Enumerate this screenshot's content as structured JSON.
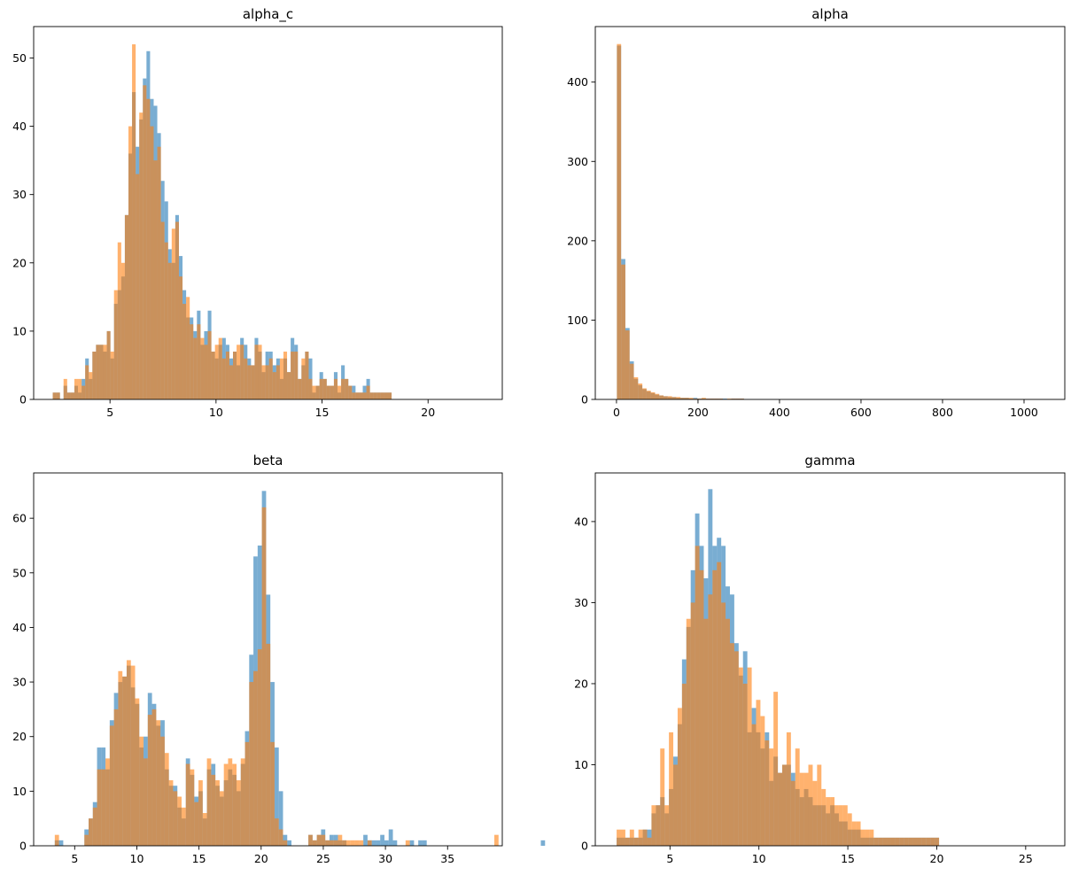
{
  "figure": {
    "background": "#ffffff"
  },
  "series_colors": [
    "#1f77b4",
    "#ff7f0e"
  ],
  "series_alpha": 0.6,
  "chart_data": [
    {
      "type": "bar",
      "title": "alpha_c",
      "xlabel": "",
      "ylabel": "",
      "xlim": [
        1.4,
        23.5
      ],
      "ylim": [
        0,
        54.6
      ],
      "xticks": [
        5,
        10,
        15,
        20
      ],
      "yticks": [
        0,
        10,
        20,
        30,
        40,
        50
      ],
      "bin_width": 0.17,
      "series": [
        {
          "x0": 2.3,
          "values": [
            1,
            1,
            0,
            2,
            1,
            1,
            2,
            1,
            3,
            6,
            3,
            7,
            8,
            8,
            7,
            10,
            6,
            14,
            16,
            18,
            27,
            36,
            45,
            37,
            41,
            47,
            51,
            44,
            43,
            39,
            32,
            29,
            22,
            20,
            27,
            21,
            16,
            12,
            12,
            10,
            13,
            8,
            10,
            13,
            7,
            6,
            8,
            9,
            8,
            6,
            7,
            5,
            9,
            8,
            6,
            5,
            9,
            7,
            4,
            7,
            7,
            5,
            6,
            3,
            6,
            4,
            9,
            8,
            3,
            5,
            7,
            6,
            1,
            2,
            4,
            3,
            2,
            2,
            4,
            1,
            5,
            3,
            2,
            2,
            1,
            1,
            2,
            3,
            1,
            1,
            1,
            1,
            1,
            1
          ]
        },
        {
          "x0": 2.3,
          "values": [
            1,
            1,
            0,
            3,
            1,
            1,
            3,
            3,
            2,
            5,
            4,
            7,
            8,
            8,
            8,
            10,
            7,
            16,
            23,
            20,
            27,
            40,
            52,
            33,
            42,
            46,
            44,
            40,
            35,
            37,
            26,
            23,
            20,
            25,
            26,
            18,
            14,
            15,
            11,
            9,
            11,
            9,
            8,
            10,
            7,
            8,
            9,
            6,
            7,
            5,
            7,
            8,
            8,
            6,
            5,
            5,
            8,
            8,
            5,
            5,
            6,
            4,
            5,
            6,
            7,
            4,
            7,
            7,
            3,
            6,
            7,
            3,
            2,
            2,
            3,
            3,
            2,
            2,
            3,
            2,
            3,
            3,
            2,
            1,
            1,
            1,
            1,
            2,
            1,
            1,
            1,
            1,
            1,
            1
          ]
        }
      ]
    },
    {
      "type": "bar",
      "title": "alpha",
      "xlabel": "",
      "ylabel": "",
      "xlim": [
        -52,
        1100
      ],
      "ylim": [
        0,
        470
      ],
      "xticks": [
        0,
        200,
        400,
        600,
        800,
        1000
      ],
      "yticks": [
        0,
        100,
        200,
        300,
        400
      ],
      "bin_width": 10.4,
      "series": [
        {
          "x0": 1,
          "values": [
            446,
            177,
            90,
            48,
            26,
            18,
            13,
            10,
            8,
            6,
            5,
            4,
            3,
            3,
            2,
            2,
            2,
            1,
            2,
            1,
            1,
            1,
            1,
            1,
            1,
            1,
            0,
            1,
            1,
            1
          ]
        },
        {
          "x0": 1,
          "values": [
            448,
            170,
            87,
            45,
            28,
            20,
            14,
            11,
            9,
            7,
            5,
            4,
            4,
            3,
            3,
            2,
            2,
            2,
            1,
            1,
            2,
            1,
            1,
            1,
            1,
            0,
            1,
            1,
            1,
            1
          ]
        }
      ]
    },
    {
      "type": "bar",
      "title": "beta",
      "xlabel": "",
      "ylabel": "",
      "xlim": [
        1.7,
        39.4
      ],
      "ylim": [
        0,
        68.3
      ],
      "xticks": [
        5,
        10,
        15,
        20,
        25,
        30,
        35
      ],
      "yticks": [
        0,
        10,
        20,
        30,
        40,
        50,
        60
      ],
      "bin_width": 0.34,
      "series": [
        {
          "x0": 3.4,
          "values": [
            1,
            1,
            0,
            0,
            0,
            0,
            0,
            3,
            5,
            8,
            18,
            18,
            14,
            23,
            28,
            30,
            31,
            33,
            29,
            26,
            18,
            20,
            28,
            26,
            22,
            23,
            14,
            11,
            11,
            7,
            5,
            16,
            13,
            9,
            10,
            5,
            14,
            15,
            11,
            9,
            12,
            14,
            13,
            10,
            15,
            21,
            35,
            53,
            55,
            65,
            46,
            30,
            18,
            10,
            2,
            1,
            0,
            0,
            0,
            0,
            2,
            1,
            2,
            3,
            1,
            2,
            2,
            1,
            1,
            0,
            0,
            0,
            0,
            2,
            1,
            1,
            1,
            2,
            1,
            3,
            1,
            0,
            0,
            0,
            1,
            0,
            1,
            1,
            0,
            0,
            0,
            0,
            0,
            0,
            0,
            0,
            0,
            0,
            0,
            0,
            0,
            0,
            0,
            0,
            0,
            0,
            0,
            0,
            0,
            0,
            0,
            0,
            0,
            0,
            0,
            1
          ]
        },
        {
          "x0": 3.4,
          "values": [
            2,
            0,
            0,
            0,
            0,
            0,
            0,
            2,
            5,
            7,
            14,
            14,
            16,
            22,
            25,
            32,
            31,
            34,
            33,
            27,
            20,
            16,
            24,
            25,
            23,
            20,
            17,
            12,
            10,
            9,
            7,
            15,
            14,
            8,
            12,
            6,
            16,
            13,
            12,
            10,
            15,
            16,
            15,
            12,
            16,
            19,
            30,
            32,
            36,
            62,
            37,
            19,
            5,
            3,
            1,
            0,
            0,
            0,
            0,
            0,
            2,
            1,
            2,
            2,
            1,
            1,
            1,
            2,
            1,
            1,
            1,
            1,
            1,
            0,
            1,
            0,
            0,
            0,
            0,
            0,
            0,
            0,
            0,
            1,
            0,
            0,
            0,
            0,
            0,
            0,
            0,
            0,
            0,
            0,
            0,
            0,
            0,
            0,
            0,
            0,
            0,
            0,
            0,
            0,
            2
          ]
        }
      ]
    },
    {
      "type": "bar",
      "title": "gamma",
      "xlabel": "",
      "ylabel": "",
      "xlim": [
        0.8,
        27.2
      ],
      "ylim": [
        0,
        46
      ],
      "xticks": [
        5,
        10,
        15,
        20,
        25
      ],
      "yticks": [
        0,
        10,
        20,
        30,
        40
      ],
      "bin_width": 0.245,
      "series": [
        {
          "x0": 2.0,
          "values": [
            1,
            1,
            1,
            1,
            1,
            1,
            2,
            2,
            4,
            5,
            6,
            4,
            7,
            11,
            15,
            23,
            27,
            34,
            41,
            37,
            33,
            44,
            37,
            38,
            37,
            32,
            31,
            25,
            21,
            24,
            14,
            17,
            14,
            12,
            14,
            8,
            11,
            9,
            10,
            10,
            9,
            7,
            6,
            7,
            6,
            5,
            5,
            5,
            4,
            5,
            4,
            3,
            3,
            2,
            2,
            2,
            1,
            1,
            1,
            1,
            1,
            1,
            1,
            1,
            1,
            1,
            1,
            1,
            1,
            1,
            1,
            1,
            1,
            1
          ]
        },
        {
          "x0": 2.0,
          "values": [
            2,
            2,
            1,
            2,
            1,
            2,
            2,
            1,
            5,
            5,
            12,
            5,
            14,
            10,
            17,
            20,
            28,
            30,
            37,
            34,
            28,
            31,
            34,
            35,
            30,
            28,
            25,
            24,
            22,
            20,
            22,
            15,
            18,
            16,
            13,
            12,
            19,
            9,
            10,
            14,
            8,
            12,
            9,
            9,
            10,
            8,
            10,
            7,
            6,
            6,
            5,
            5,
            5,
            4,
            3,
            3,
            2,
            2,
            2,
            1,
            1,
            1,
            1,
            1,
            1,
            1,
            1,
            1,
            1,
            1,
            1,
            1,
            1,
            1
          ]
        }
      ]
    }
  ]
}
